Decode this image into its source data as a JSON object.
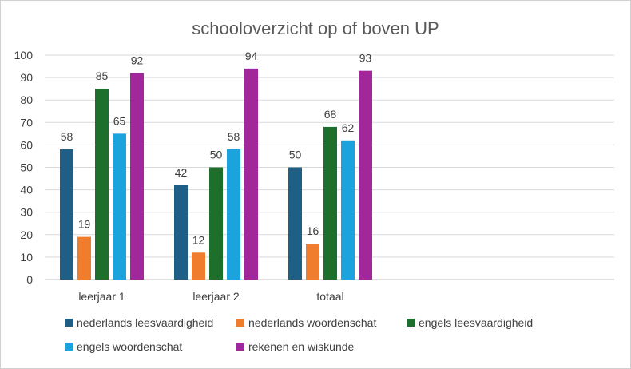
{
  "chart_data": {
    "type": "bar",
    "title": "schooloverzicht op of boven UP",
    "xlabel": "",
    "ylabel": "",
    "ylim": [
      0,
      100
    ],
    "yticks": [
      0,
      10,
      20,
      30,
      40,
      50,
      60,
      70,
      80,
      90,
      100
    ],
    "categories": [
      "leerjaar 1",
      "leerjaar 2",
      "totaal"
    ],
    "grid": true,
    "legend_position": "bottom",
    "series": [
      {
        "name": "nederlands leesvaardigheid",
        "color": "#1F5F85",
        "values": [
          58,
          42,
          50
        ]
      },
      {
        "name": "nederlands woordenschat",
        "color": "#F07D2E",
        "values": [
          19,
          12,
          16
        ]
      },
      {
        "name": "engels leesvaardigheid",
        "color": "#1E6F2C",
        "values": [
          85,
          50,
          68
        ]
      },
      {
        "name": "engels woordenschat",
        "color": "#1AA3DC",
        "values": [
          65,
          58,
          62
        ]
      },
      {
        "name": "rekenen en wiskunde",
        "color": "#A0289B",
        "values": [
          92,
          94,
          93
        ]
      }
    ]
  }
}
